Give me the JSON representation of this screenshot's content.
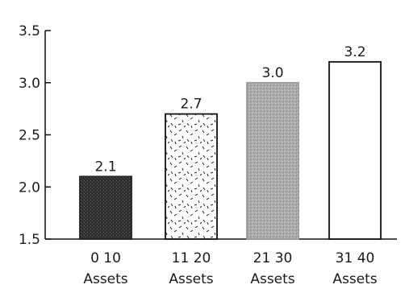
{
  "chart_data": {
    "type": "bar",
    "categories": [
      {
        "line1": "0 10",
        "line2": "Assets"
      },
      {
        "line1": "11 20",
        "line2": "Assets"
      },
      {
        "line1": "21 30",
        "line2": "Assets"
      },
      {
        "line1": "31 40",
        "line2": "Assets"
      }
    ],
    "values": [
      2.1,
      2.7,
      3.0,
      3.2
    ],
    "data_labels": [
      "2.1",
      "2.7",
      "3.0",
      "3.2"
    ],
    "ylim": [
      1.5,
      3.5
    ],
    "yticks": [
      {
        "value": 1.5,
        "label": "1.5"
      },
      {
        "value": 2.0,
        "label": "2.0"
      },
      {
        "value": 2.5,
        "label": "2.5"
      },
      {
        "value": 3.0,
        "label": "3.0"
      },
      {
        "value": 3.5,
        "label": "3.5"
      }
    ],
    "bar_fills": [
      "dark-stipple",
      "dash-speckle",
      "gray-stipple",
      "white"
    ],
    "grid": false,
    "legend": "none"
  }
}
